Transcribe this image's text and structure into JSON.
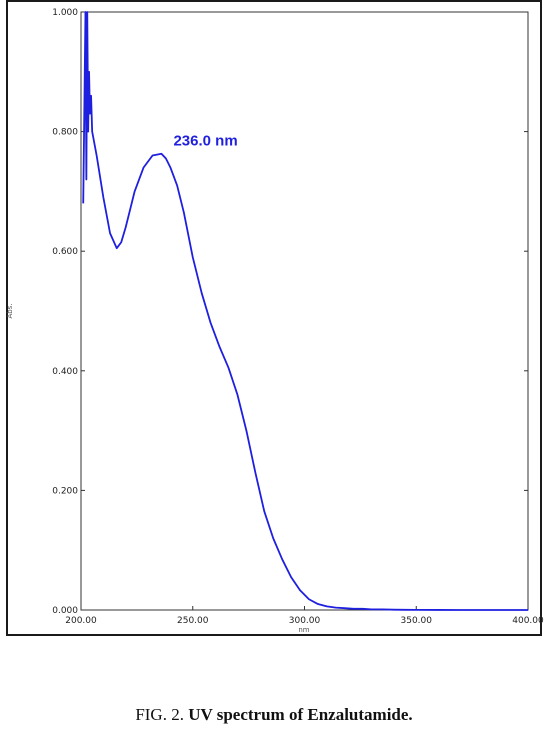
{
  "chart_data": {
    "type": "line",
    "xlabel": "nm",
    "ylabel": "Abs.",
    "xlim": [
      200,
      400
    ],
    "ylim": [
      0,
      1
    ],
    "x_ticks": [
      "200.00",
      "250.00",
      "300.00",
      "350.00",
      "400.00"
    ],
    "y_ticks": [
      "0.000",
      "0.200",
      "0.400",
      "0.600",
      "0.800",
      "1.000"
    ],
    "grid": false,
    "line_color": "#1f1fe0",
    "annotation": {
      "text": "236.0 nm",
      "x": 236.0
    },
    "series": [
      {
        "x": [
          201.0,
          202.0,
          202.4,
          202.8,
          203.2,
          203.6,
          204.0,
          204.5,
          205,
          207,
          210,
          213,
          216,
          218,
          220,
          224,
          228,
          232,
          236,
          238,
          240,
          243,
          246,
          250,
          254,
          258,
          262,
          266,
          270,
          274,
          278,
          282,
          286,
          290,
          294,
          298,
          302,
          306,
          310,
          314,
          318,
          322,
          326,
          330,
          335,
          340,
          345,
          350,
          360,
          370,
          380,
          390,
          400
        ],
        "y": [
          0.68,
          1.0,
          0.72,
          1.0,
          0.8,
          0.9,
          0.83,
          0.86,
          0.8,
          0.76,
          0.69,
          0.63,
          0.605,
          0.615,
          0.64,
          0.7,
          0.74,
          0.76,
          0.763,
          0.755,
          0.74,
          0.71,
          0.665,
          0.59,
          0.53,
          0.48,
          0.44,
          0.405,
          0.36,
          0.3,
          0.23,
          0.165,
          0.12,
          0.085,
          0.055,
          0.033,
          0.018,
          0.01,
          0.006,
          0.004,
          0.003,
          0.002,
          0.002,
          0.001,
          0.001,
          0.0005,
          0.0003,
          0.0002,
          0.0001,
          0.0,
          0.0,
          0.0,
          0.0
        ]
      }
    ]
  },
  "caption": {
    "prefix": "FIG. 2. ",
    "title": "UV spectrum of Enzalutamide."
  }
}
